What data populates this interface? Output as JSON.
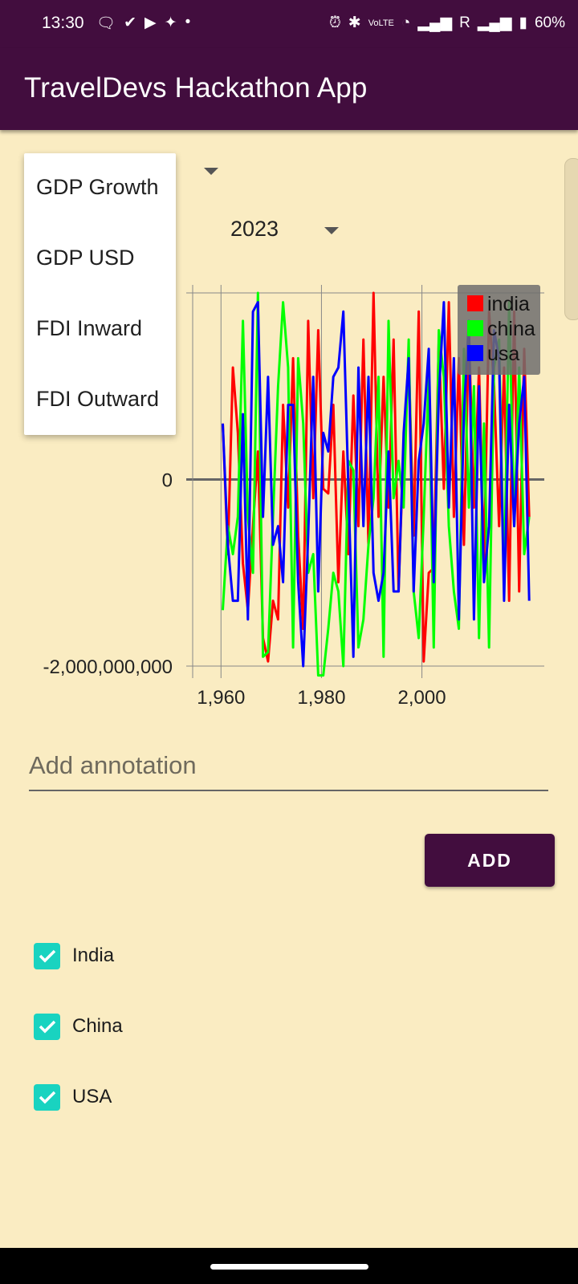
{
  "status_bar": {
    "time": "13:30",
    "network_label": "R",
    "battery": "60%"
  },
  "app_bar": {
    "title": "TravelDevs Hackathon App"
  },
  "year_selector": {
    "value": "2023"
  },
  "metric_menu": {
    "options": [
      "GDP Growth",
      "GDP USD",
      "FDI Inward",
      "FDI Outward"
    ]
  },
  "chart_data": {
    "type": "line",
    "x_ticks": [
      "1,960",
      "1,980",
      "2,000"
    ],
    "y_ticks": [
      "0",
      "-2,000,000,000"
    ],
    "ylim": [
      -2000000000,
      2000000000
    ],
    "xlim": [
      1955,
      2025
    ],
    "grid": true,
    "legend_position": "top-right",
    "x": [
      1961,
      1962,
      1963,
      1964,
      1965,
      1966,
      1967,
      1968,
      1969,
      1970,
      1971,
      1972,
      1973,
      1974,
      1975,
      1976,
      1977,
      1978,
      1979,
      1980,
      1981,
      1982,
      1983,
      1984,
      1985,
      1986,
      1987,
      1988,
      1989,
      1990,
      1991,
      1992,
      1993,
      1994,
      1995,
      1996,
      1997,
      1998,
      1999,
      2000,
      2001,
      2002,
      2003,
      2004,
      2005,
      2006,
      2007,
      2008,
      2009,
      2010,
      2011,
      2012,
      2013,
      2014,
      2015,
      2016,
      2017,
      2018,
      2019,
      2020,
      2021,
      2022
    ],
    "series": [
      {
        "name": "india",
        "color": "#ff0000",
        "values": [
          600000000,
          -800000000,
          1200000000,
          500000000,
          -900000000,
          -1400000000,
          -500000000,
          300000000,
          -1700000000,
          -1950000000,
          -1300000000,
          -1500000000,
          800000000,
          -300000000,
          1300000000,
          -600000000,
          -1600000000,
          1700000000,
          -200000000,
          1600000000,
          -100000000,
          -150000000,
          800000000,
          -1100000000,
          300000000,
          -800000000,
          900000000,
          -500000000,
          1500000000,
          -700000000,
          2000000000,
          -400000000,
          1100000000,
          -300000000,
          1500000000,
          -1200000000,
          400000000,
          1300000000,
          -600000000,
          1800000000,
          -1950000000,
          -1000000000,
          -950000000,
          1500000000,
          -100000000,
          1900000000,
          -400000000,
          1300000000,
          -700000000,
          1600000000,
          -300000000,
          1200000000,
          -900000000,
          1800000000,
          1000000000,
          -500000000,
          1200000000,
          -1300000000,
          1800000000,
          -1200000000,
          1400000000,
          -400000000
        ]
      },
      {
        "name": "china",
        "color": "#00ff00",
        "values": [
          -1400000000,
          -500000000,
          -800000000,
          -400000000,
          1700000000,
          -400000000,
          -1000000000,
          2000000000,
          -1900000000,
          -1850000000,
          -400000000,
          1000000000,
          1900000000,
          1200000000,
          -1800000000,
          1300000000,
          600000000,
          -1000000000,
          -800000000,
          -2100000000,
          -2100000000,
          -1600000000,
          -1000000000,
          -1200000000,
          -2000000000,
          200000000,
          100000000,
          -1800000000,
          -1500000000,
          -700000000,
          -200000000,
          1100000000,
          -1900000000,
          1700000000,
          -200000000,
          200000000,
          -300000000,
          1500000000,
          -1200000000,
          -1700000000,
          -400000000,
          1100000000,
          -1800000000,
          1600000000,
          1100000000,
          -500000000,
          -1200000000,
          -1600000000,
          1400000000,
          -300000000,
          1000000000,
          -1700000000,
          600000000,
          -1800000000,
          1200000000,
          1500000000,
          -1100000000,
          1900000000,
          -500000000,
          1200000000,
          -800000000,
          -400000000
        ]
      },
      {
        "name": "usa",
        "color": "#0000ff",
        "values": [
          600000000,
          -700000000,
          -1300000000,
          -1300000000,
          700000000,
          -1500000000,
          1800000000,
          1900000000,
          -400000000,
          1100000000,
          -700000000,
          -500000000,
          -1100000000,
          800000000,
          800000000,
          -1100000000,
          -2000000000,
          -600000000,
          1100000000,
          -1200000000,
          500000000,
          300000000,
          1100000000,
          1200000000,
          1800000000,
          -100000000,
          -1900000000,
          1200000000,
          -500000000,
          1100000000,
          -1000000000,
          -1300000000,
          -1000000000,
          300000000,
          -1200000000,
          -1200000000,
          500000000,
          1300000000,
          -1200000000,
          200000000,
          600000000,
          1400000000,
          -1100000000,
          900000000,
          1900000000,
          -300000000,
          1300000000,
          -1500000000,
          700000000,
          1700000000,
          -1500000000,
          1000000000,
          -1100000000,
          -500000000,
          1600000000,
          1300000000,
          -1300000000,
          800000000,
          -500000000,
          600000000,
          1100000000,
          -1300000000
        ]
      }
    ]
  },
  "annotation": {
    "placeholder": "Add annotation"
  },
  "add_button": {
    "label": "ADD"
  },
  "countries": [
    {
      "label": "India",
      "checked": true
    },
    {
      "label": "China",
      "checked": true
    },
    {
      "label": "USA",
      "checked": true
    }
  ]
}
